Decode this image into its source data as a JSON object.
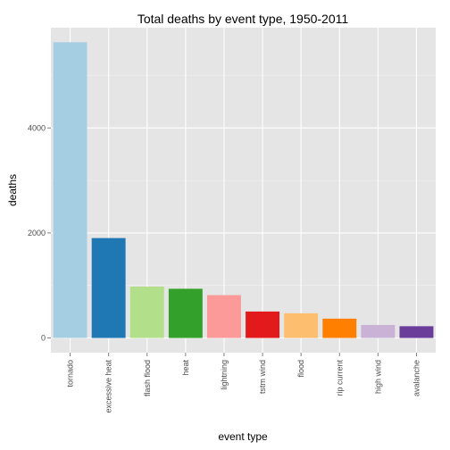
{
  "chart_data": {
    "type": "bar",
    "title": "Total deaths by event type, 1950-2011",
    "xlabel": "event type",
    "ylabel": "deaths",
    "categories": [
      "tornado",
      "excessive heat",
      "flash flood",
      "heat",
      "lightning",
      "tstm wind",
      "flood",
      "rip current",
      "high wind",
      "avalanche"
    ],
    "values": [
      5633,
      1903,
      978,
      937,
      816,
      504,
      470,
      368,
      248,
      224
    ],
    "colors": [
      "#A6CEE3",
      "#1F78B4",
      "#B2DF8A",
      "#33A02C",
      "#FB9A99",
      "#E31A1C",
      "#FDBF6F",
      "#FF7F00",
      "#CAB2D6",
      "#6A3D9A"
    ],
    "ylim": [
      -280,
      5910
    ],
    "yticks": [
      0,
      2000,
      4000
    ],
    "grid": true,
    "legend": "none",
    "panel_background": "#E5E5E5"
  }
}
